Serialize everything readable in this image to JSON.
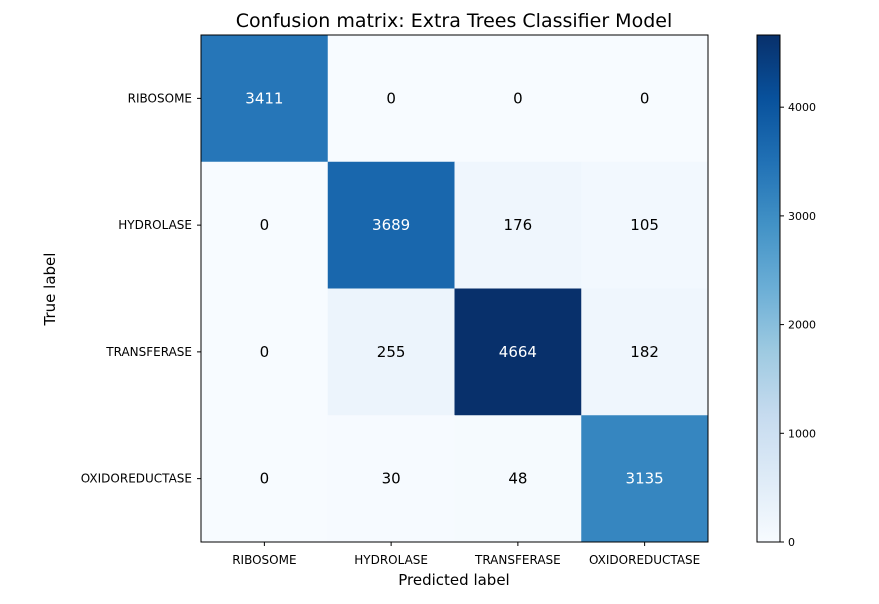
{
  "chart_data": {
    "type": "heatmap",
    "title": "Confusion matrix: Extra Trees Classifier Model",
    "xlabel": "Predicted label",
    "ylabel": "True label",
    "x_categories": [
      "RIBOSOME",
      "HYDROLASE",
      "TRANSFERASE",
      "OXIDOREDUCTASE"
    ],
    "y_categories": [
      "RIBOSOME",
      "HYDROLASE",
      "TRANSFERASE",
      "OXIDOREDUCTASE"
    ],
    "values": [
      [
        3411,
        0,
        0,
        0
      ],
      [
        0,
        3689,
        176,
        105
      ],
      [
        0,
        255,
        4664,
        182
      ],
      [
        0,
        30,
        48,
        3135
      ]
    ],
    "colormap": "Blues",
    "colorbar": {
      "range": [
        0,
        4664
      ],
      "ticks": [
        0,
        1000,
        2000,
        3000,
        4000
      ],
      "tick_labels": [
        "0",
        "1000",
        "2000",
        "3000",
        "4000"
      ]
    },
    "colors": {
      "low": "#f7fbff",
      "high": "#08306b",
      "text_dark": "#000000",
      "text_light": "#ffffff"
    }
  }
}
